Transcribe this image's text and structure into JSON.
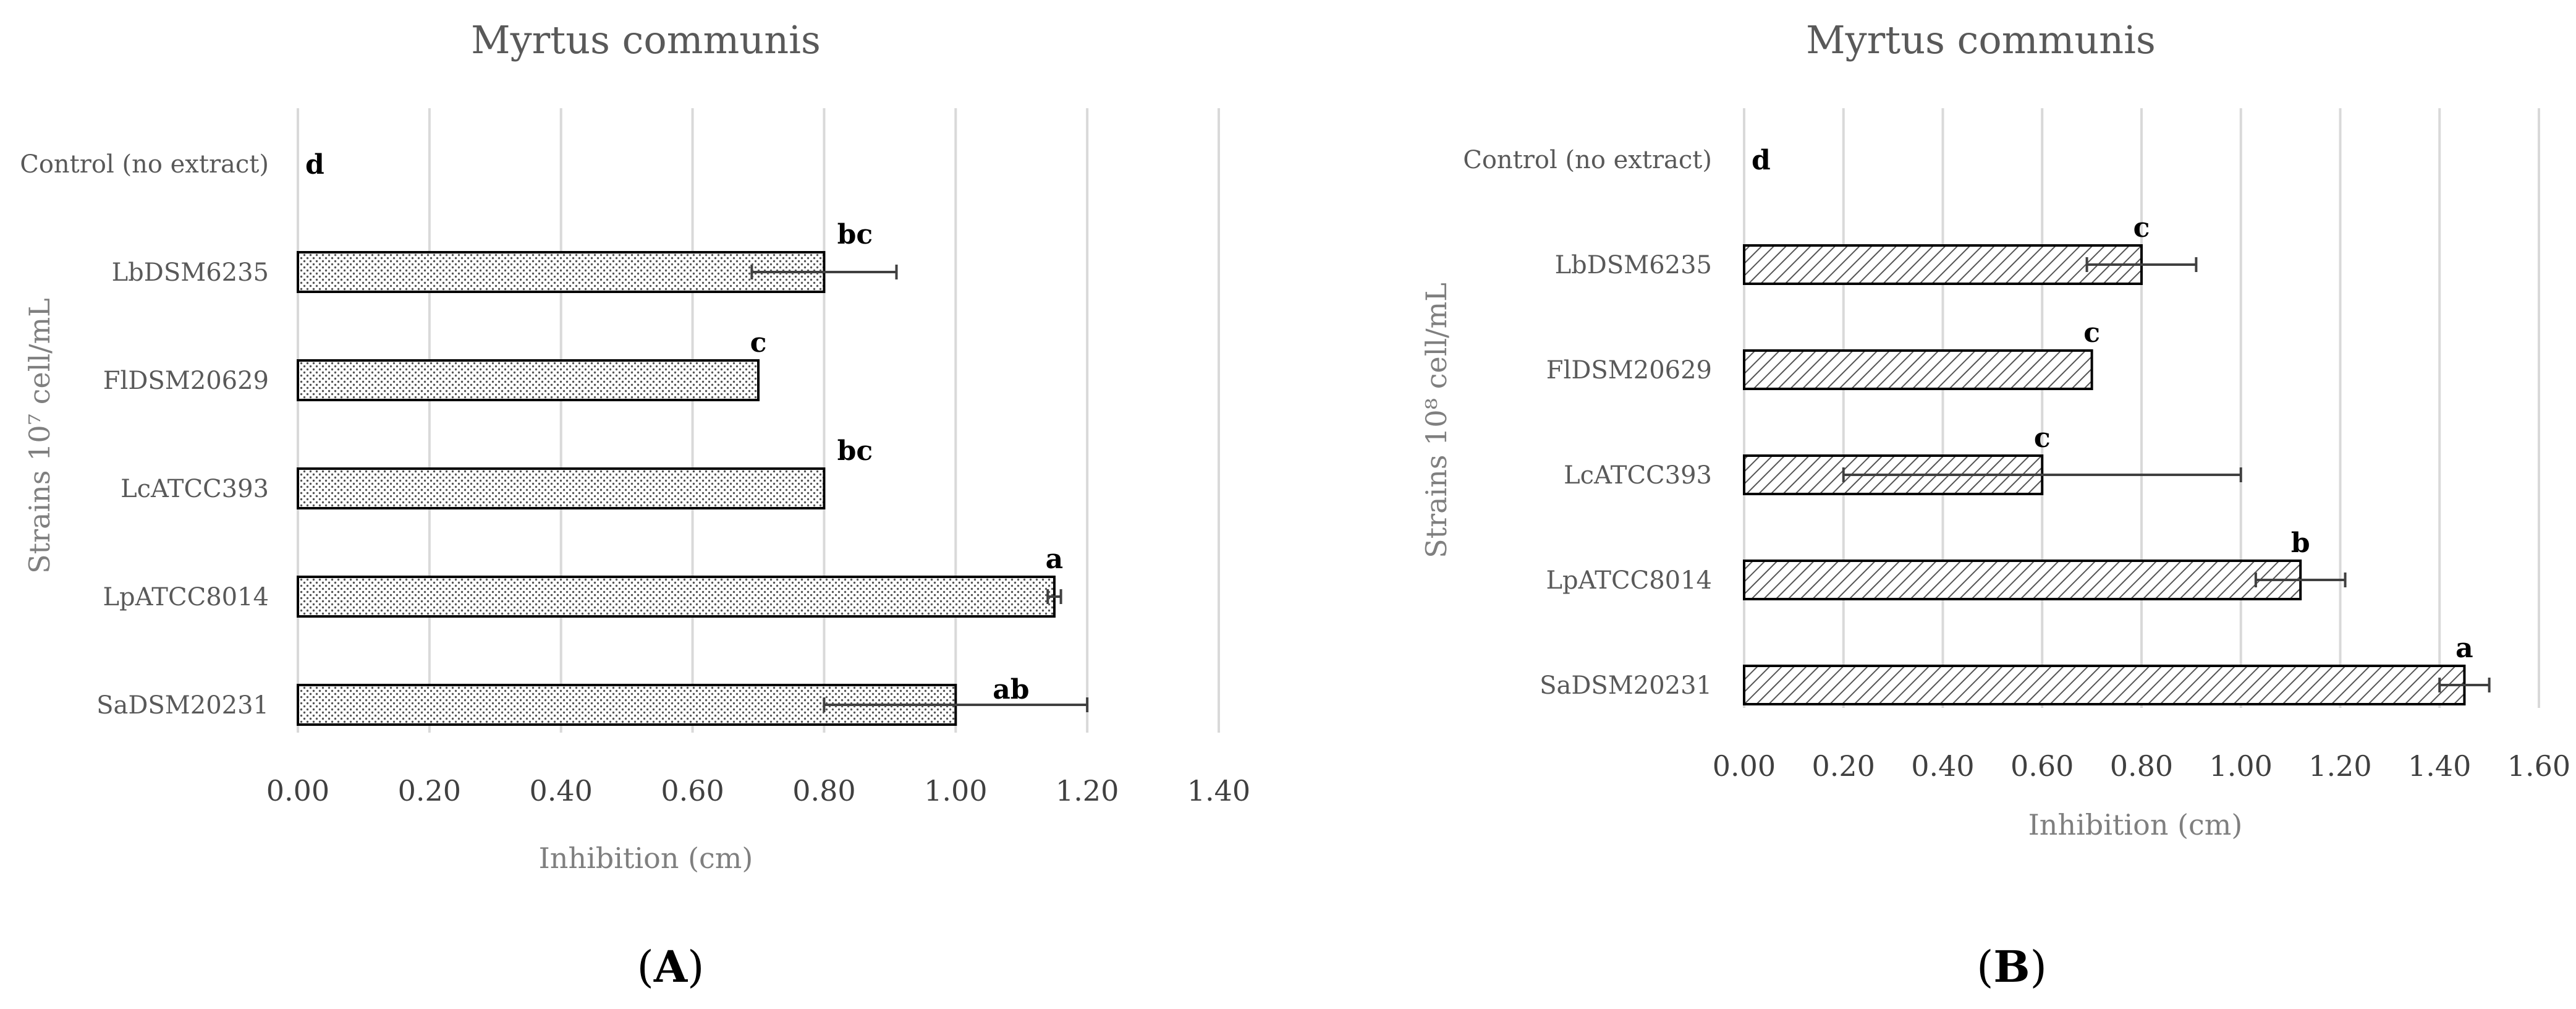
{
  "chart_data": [
    {
      "type": "bar",
      "orientation": "horizontal",
      "panel_label": "A",
      "title": "Myrtus communis",
      "xlabel": "Inhibition (cm)",
      "ylabel": "Strains 10⁷ cell/mL",
      "xlim": [
        0,
        1.4
      ],
      "xticks": [
        "0.00",
        "0.20",
        "0.40",
        "0.60",
        "0.80",
        "1.00",
        "1.20",
        "1.40"
      ],
      "grid": true,
      "pattern": "dots",
      "categories": [
        "Control (no extract)",
        "LbDSM6235",
        "FlDSM20629",
        "LcATCC393",
        "LpATCC8014",
        "SaDSM20231"
      ],
      "values": [
        0,
        0.8,
        0.7,
        0.8,
        1.15,
        1.0
      ],
      "errors": [
        0,
        0.11,
        0,
        0,
        0.01,
        0.2
      ],
      "letters": [
        "d",
        "bc",
        "c",
        "bc",
        "a",
        "ab"
      ]
    },
    {
      "type": "bar",
      "orientation": "horizontal",
      "panel_label": "B",
      "title": "Myrtus communis",
      "xlabel": "Inhibition (cm)",
      "ylabel": "Strains 10⁸ cell/mL",
      "xlim": [
        0,
        1.6
      ],
      "xticks": [
        "0.00",
        "0.20",
        "0.40",
        "0.60",
        "0.80",
        "1.00",
        "1.20",
        "1.40",
        "1.60"
      ],
      "grid": true,
      "pattern": "diagonal-hatch",
      "categories": [
        "Control (no extract)",
        "LbDSM6235",
        "FlDSM20629",
        "LcATCC393",
        "LpATCC8014",
        "SaDSM20231"
      ],
      "values": [
        0,
        0.8,
        0.7,
        0.6,
        1.12,
        1.45
      ],
      "errors": [
        0,
        0.11,
        0,
        0.4,
        0.09,
        0.05
      ],
      "letters": [
        "d",
        "c",
        "c",
        "c",
        "b",
        "a"
      ]
    }
  ]
}
